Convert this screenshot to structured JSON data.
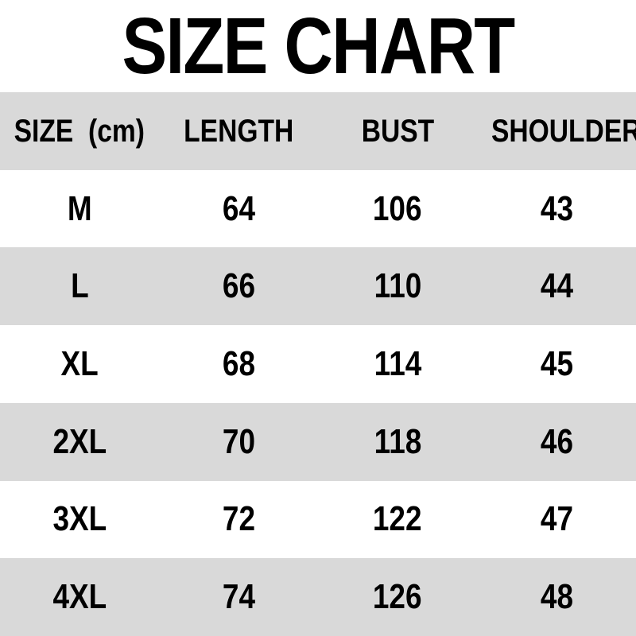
{
  "title": "SIZE CHART",
  "colors": {
    "row_stripe": "#d9d9d9",
    "text": "#000000",
    "background": "#ffffff"
  },
  "chart_data": {
    "type": "table",
    "title": "SIZE CHART",
    "unit": "cm",
    "columns": [
      "SIZE  (cm)",
      "LENGTH",
      "BUST",
      "SHOULDER"
    ],
    "rows": [
      [
        "M",
        "64",
        "106",
        "43"
      ],
      [
        "L",
        "66",
        "110",
        "44"
      ],
      [
        "XL",
        "68",
        "114",
        "45"
      ],
      [
        "2XL",
        "70",
        "118",
        "46"
      ],
      [
        "3XL",
        "72",
        "122",
        "47"
      ],
      [
        "4XL",
        "74",
        "126",
        "48"
      ]
    ],
    "layout": {
      "header_background": "#d9d9d9",
      "row_striping": "alternating white/gray starting white",
      "text_alignment": "center"
    }
  }
}
